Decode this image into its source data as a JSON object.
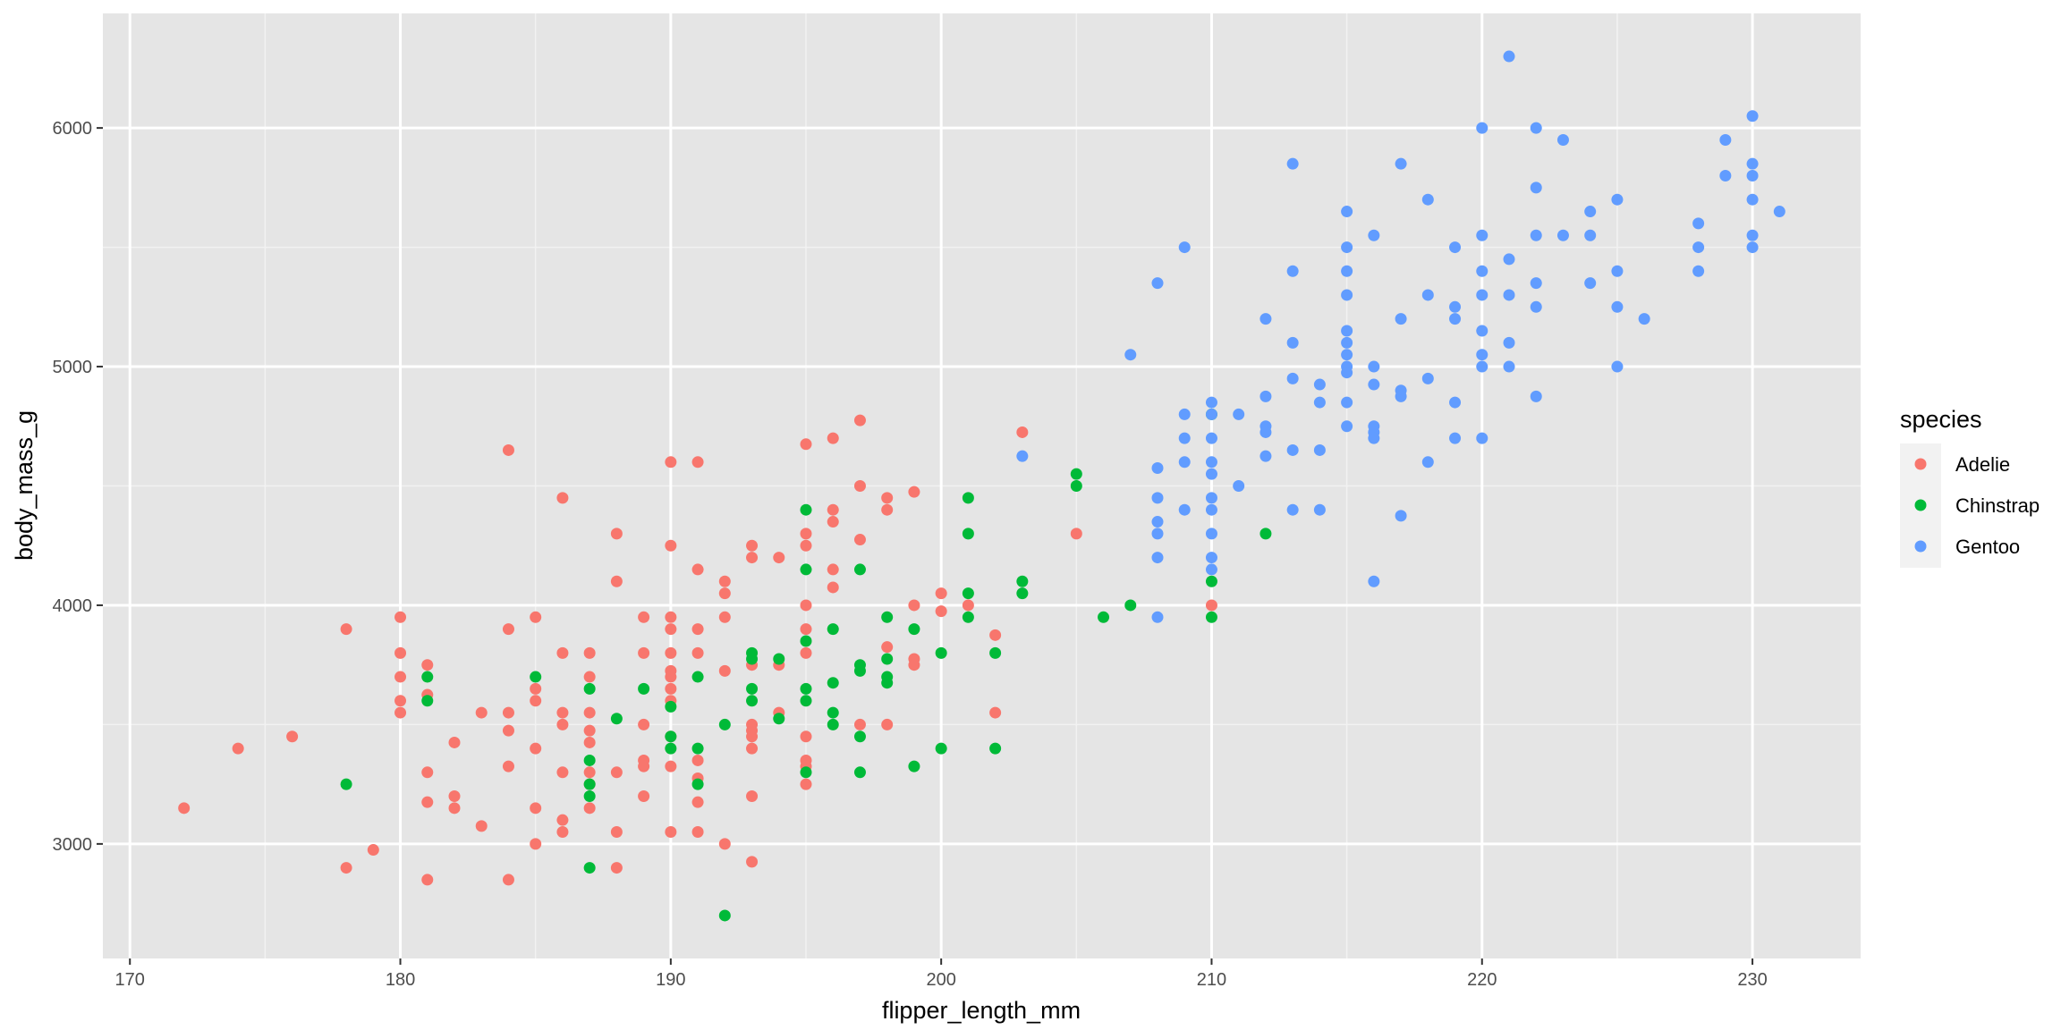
{
  "chart_data": {
    "type": "scatter",
    "xlabel": "flipper_length_mm",
    "ylabel": "body_mass_g",
    "xlim": [
      169,
      234
    ],
    "ylim": [
      2520,
      6480
    ],
    "x_ticks": [
      170,
      180,
      190,
      200,
      210,
      220,
      230
    ],
    "y_ticks": [
      3000,
      4000,
      5000,
      6000
    ],
    "x_minor_ticks": [
      175,
      185,
      195,
      205,
      215,
      225
    ],
    "y_minor_ticks": [
      3500,
      4500,
      5500
    ],
    "grid": true,
    "panel_color": "#e5e5e5",
    "legend": {
      "title": "species",
      "position": "right"
    },
    "series": [
      {
        "name": "Adelie",
        "color": "#f8766d",
        "points": [
          [
            172,
            3150
          ],
          [
            174,
            3400
          ],
          [
            176,
            3450
          ],
          [
            178,
            3900
          ],
          [
            178,
            2900
          ],
          [
            179,
            2975
          ],
          [
            180,
            3950
          ],
          [
            180,
            3800
          ],
          [
            180,
            3700
          ],
          [
            180,
            3600
          ],
          [
            180,
            3550
          ],
          [
            181,
            3750
          ],
          [
            181,
            3625
          ],
          [
            181,
            3300
          ],
          [
            181,
            3175
          ],
          [
            181,
            2850
          ],
          [
            182,
            3425
          ],
          [
            182,
            3200
          ],
          [
            182,
            3150
          ],
          [
            183,
            3550
          ],
          [
            183,
            3075
          ],
          [
            184,
            4650
          ],
          [
            184,
            3900
          ],
          [
            184,
            3550
          ],
          [
            184,
            3475
          ],
          [
            184,
            3325
          ],
          [
            184,
            2850
          ],
          [
            185,
            3950
          ],
          [
            185,
            3650
          ],
          [
            185,
            3600
          ],
          [
            185,
            3400
          ],
          [
            185,
            3150
          ],
          [
            185,
            3000
          ],
          [
            186,
            4450
          ],
          [
            186,
            3800
          ],
          [
            186,
            3550
          ],
          [
            186,
            3500
          ],
          [
            186,
            3300
          ],
          [
            186,
            3100
          ],
          [
            186,
            3050
          ],
          [
            187,
            3800
          ],
          [
            187,
            3700
          ],
          [
            187,
            3550
          ],
          [
            187,
            3475
          ],
          [
            187,
            3425
          ],
          [
            187,
            3300
          ],
          [
            187,
            3250
          ],
          [
            187,
            3150
          ],
          [
            188,
            4300
          ],
          [
            188,
            4100
          ],
          [
            188,
            3300
          ],
          [
            188,
            3050
          ],
          [
            188,
            2900
          ],
          [
            189,
            3950
          ],
          [
            189,
            3800
          ],
          [
            189,
            3500
          ],
          [
            189,
            3350
          ],
          [
            189,
            3325
          ],
          [
            189,
            3200
          ],
          [
            190,
            4600
          ],
          [
            190,
            4250
          ],
          [
            190,
            3950
          ],
          [
            190,
            3900
          ],
          [
            190,
            3800
          ],
          [
            190,
            3725
          ],
          [
            190,
            3700
          ],
          [
            190,
            3650
          ],
          [
            190,
            3600
          ],
          [
            190,
            3450
          ],
          [
            190,
            3325
          ],
          [
            190,
            3050
          ],
          [
            191,
            4600
          ],
          [
            191,
            4150
          ],
          [
            191,
            3900
          ],
          [
            191,
            3800
          ],
          [
            191,
            3350
          ],
          [
            191,
            3275
          ],
          [
            191,
            3175
          ],
          [
            191,
            3050
          ],
          [
            192,
            4100
          ],
          [
            192,
            4050
          ],
          [
            192,
            3950
          ],
          [
            192,
            3725
          ],
          [
            192,
            3000
          ],
          [
            193,
            4250
          ],
          [
            193,
            4200
          ],
          [
            193,
            3750
          ],
          [
            193,
            3500
          ],
          [
            193,
            3475
          ],
          [
            193,
            3450
          ],
          [
            193,
            3400
          ],
          [
            193,
            3200
          ],
          [
            193,
            2925
          ],
          [
            194,
            4200
          ],
          [
            194,
            3750
          ],
          [
            194,
            3550
          ],
          [
            195,
            4675
          ],
          [
            195,
            4300
          ],
          [
            195,
            4250
          ],
          [
            195,
            4000
          ],
          [
            195,
            3900
          ],
          [
            195,
            3800
          ],
          [
            195,
            3450
          ],
          [
            195,
            3350
          ],
          [
            195,
            3325
          ],
          [
            195,
            3250
          ],
          [
            196,
            4700
          ],
          [
            196,
            4400
          ],
          [
            196,
            4350
          ],
          [
            196,
            4150
          ],
          [
            196,
            4075
          ],
          [
            197,
            4775
          ],
          [
            197,
            4500
          ],
          [
            197,
            4275
          ],
          [
            197,
            3500
          ],
          [
            198,
            4450
          ],
          [
            198,
            4400
          ],
          [
            198,
            3825
          ],
          [
            198,
            3500
          ],
          [
            199,
            4475
          ],
          [
            199,
            4000
          ],
          [
            199,
            3775
          ],
          [
            199,
            3750
          ],
          [
            200,
            4050
          ],
          [
            200,
            3975
          ],
          [
            201,
            4000
          ],
          [
            202,
            3875
          ],
          [
            202,
            3550
          ],
          [
            203,
            4725
          ],
          [
            205,
            4300
          ],
          [
            210,
            4000
          ]
        ]
      },
      {
        "name": "Chinstrap",
        "color": "#00ba38",
        "points": [
          [
            178,
            3250
          ],
          [
            181,
            3700
          ],
          [
            181,
            3600
          ],
          [
            185,
            3700
          ],
          [
            187,
            3650
          ],
          [
            187,
            3350
          ],
          [
            187,
            3250
          ],
          [
            187,
            3200
          ],
          [
            187,
            2900
          ],
          [
            188,
            3525
          ],
          [
            189,
            3650
          ],
          [
            190,
            3575
          ],
          [
            190,
            3450
          ],
          [
            190,
            3400
          ],
          [
            191,
            3700
          ],
          [
            191,
            3400
          ],
          [
            191,
            3250
          ],
          [
            192,
            3500
          ],
          [
            192,
            2700
          ],
          [
            193,
            3800
          ],
          [
            193,
            3775
          ],
          [
            193,
            3650
          ],
          [
            193,
            3600
          ],
          [
            194,
            3775
          ],
          [
            194,
            3525
          ],
          [
            195,
            4400
          ],
          [
            195,
            4150
          ],
          [
            195,
            3850
          ],
          [
            195,
            3650
          ],
          [
            195,
            3600
          ],
          [
            195,
            3300
          ],
          [
            196,
            3900
          ],
          [
            196,
            3675
          ],
          [
            196,
            3550
          ],
          [
            196,
            3500
          ],
          [
            197,
            4150
          ],
          [
            197,
            3750
          ],
          [
            197,
            3725
          ],
          [
            197,
            3450
          ],
          [
            197,
            3300
          ],
          [
            198,
            3950
          ],
          [
            198,
            3775
          ],
          [
            198,
            3700
          ],
          [
            198,
            3675
          ],
          [
            199,
            3900
          ],
          [
            199,
            3325
          ],
          [
            200,
            3800
          ],
          [
            200,
            3400
          ],
          [
            201,
            4450
          ],
          [
            201,
            4300
          ],
          [
            201,
            4050
          ],
          [
            201,
            3950
          ],
          [
            202,
            3800
          ],
          [
            202,
            3400
          ],
          [
            203,
            4100
          ],
          [
            203,
            4050
          ],
          [
            205,
            4550
          ],
          [
            205,
            4500
          ],
          [
            206,
            3950
          ],
          [
            207,
            4000
          ],
          [
            210,
            4800
          ],
          [
            210,
            4100
          ],
          [
            210,
            3950
          ],
          [
            212,
            4300
          ]
        ]
      },
      {
        "name": "Gentoo",
        "color": "#619cff",
        "points": [
          [
            203,
            4625
          ],
          [
            207,
            5050
          ],
          [
            208,
            5350
          ],
          [
            208,
            4575
          ],
          [
            208,
            4450
          ],
          [
            208,
            4350
          ],
          [
            208,
            4300
          ],
          [
            208,
            4200
          ],
          [
            208,
            3950
          ],
          [
            209,
            5500
          ],
          [
            209,
            4800
          ],
          [
            209,
            4700
          ],
          [
            209,
            4600
          ],
          [
            209,
            4400
          ],
          [
            210,
            4850
          ],
          [
            210,
            4800
          ],
          [
            210,
            4700
          ],
          [
            210,
            4600
          ],
          [
            210,
            4550
          ],
          [
            210,
            4450
          ],
          [
            210,
            4400
          ],
          [
            210,
            4300
          ],
          [
            210,
            4200
          ],
          [
            210,
            4150
          ],
          [
            211,
            4800
          ],
          [
            211,
            4500
          ],
          [
            212,
            5200
          ],
          [
            212,
            4875
          ],
          [
            212,
            4750
          ],
          [
            212,
            4725
          ],
          [
            212,
            4625
          ],
          [
            213,
            5850
          ],
          [
            213,
            5400
          ],
          [
            213,
            5100
          ],
          [
            213,
            4950
          ],
          [
            213,
            4650
          ],
          [
            213,
            4400
          ],
          [
            214,
            4925
          ],
          [
            214,
            4850
          ],
          [
            214,
            4650
          ],
          [
            214,
            4400
          ],
          [
            215,
            5650
          ],
          [
            215,
            5500
          ],
          [
            215,
            5400
          ],
          [
            215,
            5300
          ],
          [
            215,
            5150
          ],
          [
            215,
            5100
          ],
          [
            215,
            5050
          ],
          [
            215,
            5000
          ],
          [
            215,
            4975
          ],
          [
            215,
            4850
          ],
          [
            215,
            4750
          ],
          [
            216,
            5550
          ],
          [
            216,
            5000
          ],
          [
            216,
            4925
          ],
          [
            216,
            4750
          ],
          [
            216,
            4725
          ],
          [
            216,
            4700
          ],
          [
            216,
            4100
          ],
          [
            217,
            5850
          ],
          [
            217,
            5200
          ],
          [
            217,
            4900
          ],
          [
            217,
            4875
          ],
          [
            217,
            4375
          ],
          [
            218,
            5700
          ],
          [
            218,
            5300
          ],
          [
            218,
            4950
          ],
          [
            218,
            4600
          ],
          [
            219,
            5500
          ],
          [
            219,
            5250
          ],
          [
            219,
            5200
          ],
          [
            219,
            4850
          ],
          [
            219,
            4700
          ],
          [
            220,
            6000
          ],
          [
            220,
            5550
          ],
          [
            220,
            5400
          ],
          [
            220,
            5300
          ],
          [
            220,
            5150
          ],
          [
            220,
            5050
          ],
          [
            220,
            5000
          ],
          [
            220,
            4700
          ],
          [
            221,
            6300
          ],
          [
            221,
            5450
          ],
          [
            221,
            5300
          ],
          [
            221,
            5100
          ],
          [
            221,
            5000
          ],
          [
            222,
            6000
          ],
          [
            222,
            5750
          ],
          [
            222,
            5550
          ],
          [
            222,
            5350
          ],
          [
            222,
            5250
          ],
          [
            222,
            4875
          ],
          [
            223,
            5950
          ],
          [
            223,
            5550
          ],
          [
            224,
            5650
          ],
          [
            224,
            5550
          ],
          [
            224,
            5350
          ],
          [
            225,
            5700
          ],
          [
            225,
            5400
          ],
          [
            225,
            5250
          ],
          [
            225,
            5000
          ],
          [
            226,
            5200
          ],
          [
            228,
            5600
          ],
          [
            228,
            5500
          ],
          [
            228,
            5400
          ],
          [
            229,
            5950
          ],
          [
            229,
            5800
          ],
          [
            230,
            6050
          ],
          [
            230,
            5850
          ],
          [
            230,
            5800
          ],
          [
            230,
            5700
          ],
          [
            230,
            5550
          ],
          [
            230,
            5500
          ],
          [
            231,
            5650
          ]
        ]
      }
    ]
  }
}
